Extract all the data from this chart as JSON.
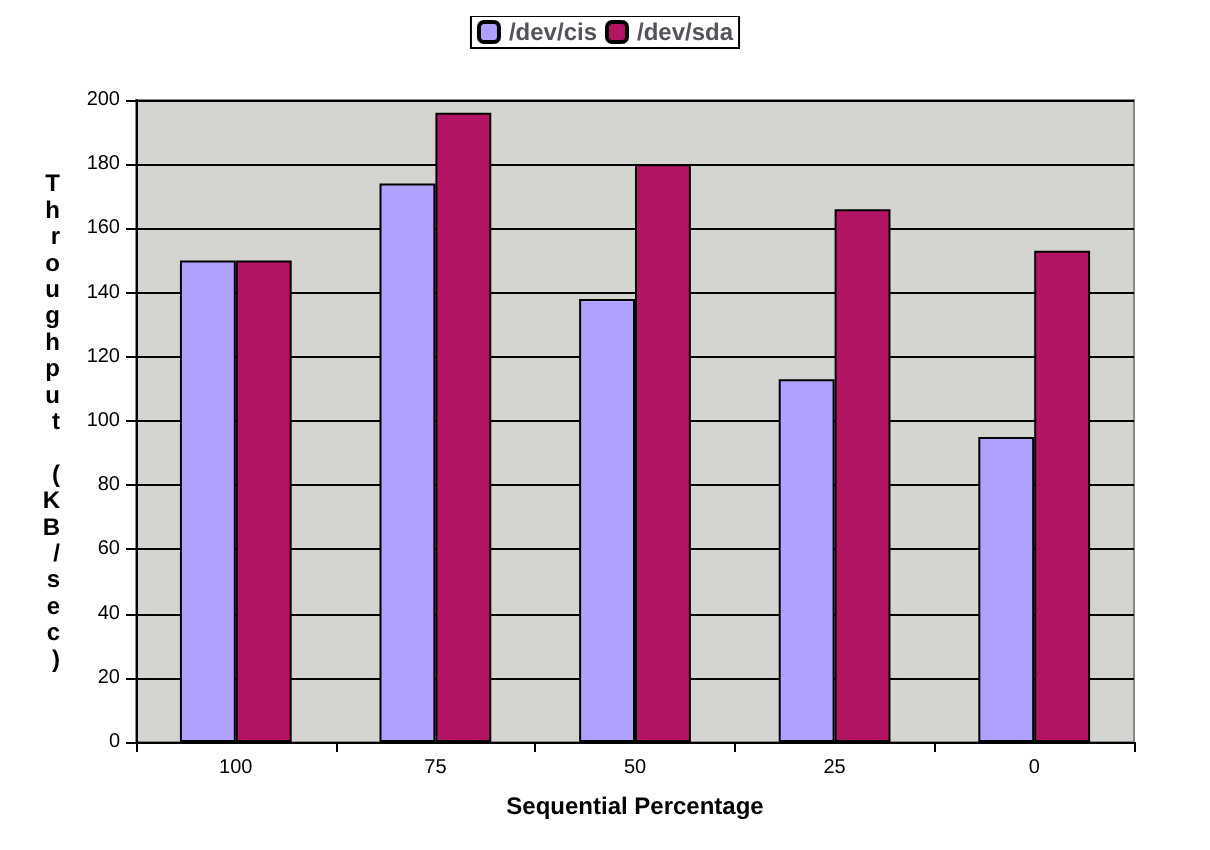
{
  "chart_data": {
    "type": "bar",
    "xlabel": "Sequential Percentage",
    "ylabel": "Throughput (KB/sec)",
    "categories": [
      "100",
      "75",
      "50",
      "25",
      "0"
    ],
    "series": [
      {
        "name": "/dev/cis",
        "color": "#b0a0ff",
        "values": [
          150,
          174,
          138,
          113,
          95
        ]
      },
      {
        "name": "/dev/sda",
        "color": "#b41464",
        "values": [
          150,
          196,
          180,
          166,
          153
        ]
      }
    ],
    "ylim": [
      0,
      200
    ],
    "yticks": [
      0,
      20,
      40,
      60,
      80,
      100,
      120,
      140,
      160,
      180,
      200
    ],
    "grid": "y",
    "legend": "top"
  }
}
